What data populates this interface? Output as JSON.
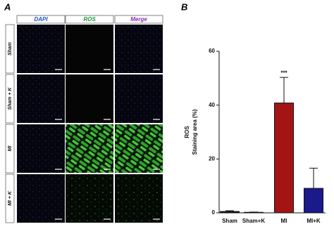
{
  "figure": {
    "panel_labels": [
      "A",
      "B"
    ],
    "columns": [
      "DAPI",
      "ROS",
      "Merge"
    ],
    "rows": [
      "Sham",
      "Sham + K",
      "MI",
      "MI + K"
    ]
  },
  "chart_data": {
    "type": "bar",
    "ylabel": [
      "ROS",
      "Staining area (%)"
    ],
    "categories": [
      "Sham",
      "Sham+K",
      "MI",
      "MI+K"
    ],
    "values": [
      0.5,
      0.2,
      40.8,
      9.1
    ],
    "errors": [
      0.3,
      0.1,
      9.5,
      7.5
    ],
    "colors": [
      "#111111",
      "#ffffff",
      "#a31515",
      "#1a1a8a"
    ],
    "ylim": [
      0,
      60
    ],
    "yticks": [
      0,
      20,
      40,
      60
    ],
    "annotations": [
      {
        "text": "***",
        "x": "MI"
      }
    ]
  }
}
